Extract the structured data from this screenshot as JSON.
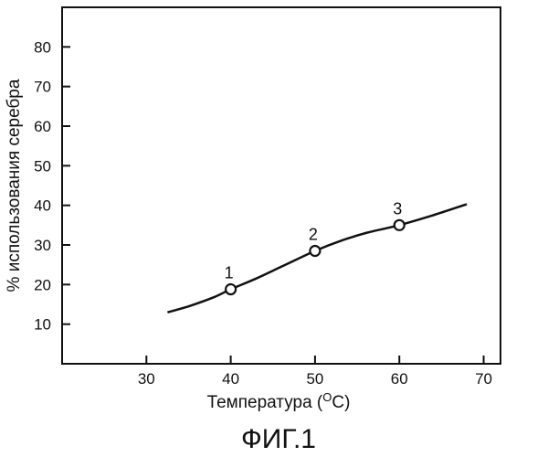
{
  "chart_data": {
    "type": "line",
    "xlabel": "Температура (",
    "xlabel_unit_sup": "O",
    "xlabel_unit_end": "C)",
    "ylabel": "% использования серебра",
    "caption": "ФИГ.1",
    "xlim": [
      20,
      72
    ],
    "ylim": [
      0,
      90
    ],
    "x_ticks": [
      30,
      40,
      50,
      60,
      70
    ],
    "y_ticks": [
      10,
      20,
      30,
      40,
      50,
      60,
      70,
      80
    ],
    "grid": false,
    "series": [
      {
        "curve": [
          [
            32.5,
            13
          ],
          [
            35,
            14.5
          ],
          [
            38,
            16.8
          ],
          [
            40,
            18.8
          ],
          [
            43,
            21.5
          ],
          [
            46,
            24.5
          ],
          [
            50,
            28.5
          ],
          [
            53,
            31
          ],
          [
            56,
            33
          ],
          [
            60,
            35
          ],
          [
            64,
            37.5
          ],
          [
            68,
            40.3
          ]
        ],
        "markers": [
          {
            "x": 40,
            "y": 18.8,
            "label": "1"
          },
          {
            "x": 50,
            "y": 28.5,
            "label": "2"
          },
          {
            "x": 60,
            "y": 35,
            "label": "3"
          }
        ]
      }
    ],
    "colors": {
      "line": "#111111",
      "marker_fill": "#ffffff"
    }
  }
}
